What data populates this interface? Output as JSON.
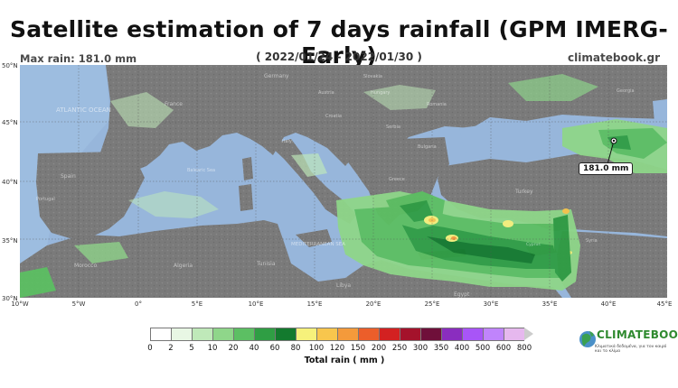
{
  "header": {
    "title": "Satellite estimation of 7 days rainfall (GPM IMERG-Early)",
    "max_rain": "Max rain: 181.0 mm",
    "date_range": "( 2022/01/24 - 2022/01/30 )",
    "site": "climatebook.gr"
  },
  "map": {
    "lat_ticks": [
      "50°N",
      "45°N",
      "40°N",
      "35°N",
      "30°N"
    ],
    "lon_ticks": [
      "10°W",
      "5°W",
      "0°",
      "5°E",
      "10°E",
      "15°E",
      "20°E",
      "25°E",
      "30°E",
      "35°E",
      "40°E",
      "45°E"
    ],
    "max_callout": "181.0 mm",
    "labels": {
      "ocean": "ATLANTIC OCEAN",
      "sea_balearic": "Balearic Sea",
      "sea_med": "MEDITERRANEAN SEA",
      "countries": [
        "France",
        "Spain",
        "Portugal",
        "Morocco",
        "Algeria",
        "Tunisia",
        "Libya",
        "Egypt",
        "Germany",
        "Austria",
        "Slovakia",
        "Hungary",
        "Romania",
        "Serbia",
        "Bulgaria",
        "Italy",
        "Croatia",
        "Greece",
        "Turkey",
        "Cyprus",
        "Syria",
        "Georgia"
      ]
    },
    "colors": {
      "land": "#7a7a7a",
      "water": "#97b6db"
    }
  },
  "legend": {
    "ticks": [
      "0",
      "2",
      "5",
      "10",
      "20",
      "40",
      "60",
      "80",
      "100",
      "120",
      "150",
      "200",
      "250",
      "300",
      "350",
      "400",
      "500",
      "600",
      "800"
    ],
    "colors": [
      "#ffffff",
      "#e8f7e4",
      "#bfe9b9",
      "#8fd68a",
      "#5cbf63",
      "#2f9e44",
      "#137a2e",
      "#f6f17b",
      "#f8c64d",
      "#f49a3b",
      "#ec5e2a",
      "#d32121",
      "#a4122b",
      "#6f0f3a",
      "#8a2dbf",
      "#a855f7",
      "#c084fc",
      "#e6b8ee"
    ],
    "title": "Total rain ( mm )"
  },
  "logo": {
    "name": "CLIMATEBOOK",
    "tagline": "Κλιματικά δεδομένα, για τον καιρό και το κλίμα"
  }
}
